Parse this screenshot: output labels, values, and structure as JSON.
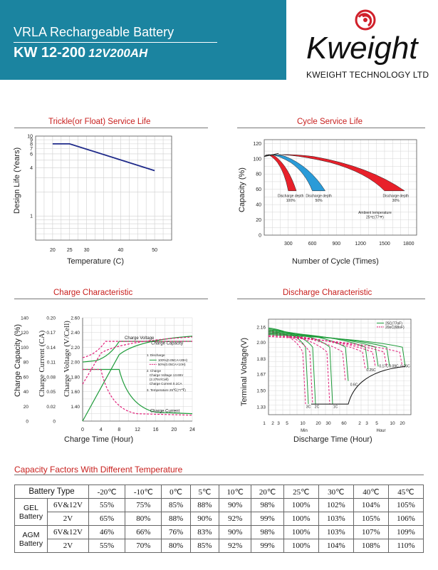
{
  "header": {
    "series": "VRLA Rechargeable Battery",
    "model": "KW 12-200",
    "spec": "12V200AH",
    "brand": "Kweight",
    "company": "KWEIGHT TECHNOLOGY LTD",
    "colors": {
      "banner": "#1b84a0",
      "accent": "#c8201e"
    }
  },
  "sections": {
    "trickle": "Trickle(or Float) Service Life",
    "cycle": "Cycle Service Life",
    "charge": "Charge Characteristic",
    "discharge": "Discharge Characteristic",
    "capacity": "Capacity Factors With Different Temperature"
  },
  "chart_data": [
    {
      "type": "line",
      "title": "Trickle(or Float) Service Life",
      "xlabel": "Temperature (C)",
      "ylabel": "Design Life (Years)",
      "x_ticks": [
        "20",
        "25",
        "30",
        "40",
        "50"
      ],
      "y_ticks": [
        "1",
        "4",
        "6",
        "7",
        "8",
        "9",
        "10"
      ],
      "series": [
        {
          "x": [
            20,
            25,
            50
          ],
          "y": [
            8,
            8,
            3.7
          ]
        }
      ],
      "ylim": [
        0.5,
        10
      ],
      "y_scale": "log",
      "grid": true
    },
    {
      "type": "area",
      "title": "Cycle Service Life",
      "xlabel": "Number of Cycle (Times)",
      "ylabel": "Capacity (%)",
      "x_ticks": [
        "300",
        "600",
        "900",
        "1200",
        "1500",
        "1800"
      ],
      "y_ticks": [
        "0",
        "20",
        "40",
        "60",
        "80",
        "100",
        "120"
      ],
      "xlim": [
        0,
        1900
      ],
      "ylim": [
        0,
        125
      ],
      "grid": true,
      "annotations": [
        "Discharge depth",
        "100%",
        "Discharge depth",
        "50%",
        "Discharge depth",
        "30%",
        "Ambient temperature",
        "25℃(77℉)"
      ],
      "series": [
        {
          "depth": "100%",
          "end_cycles": [
            300,
            400
          ],
          "color": "#e8202a"
        },
        {
          "depth": "50%",
          "end_cycles": [
            600,
            760
          ],
          "color": "#2a9bd8"
        },
        {
          "depth": "30%",
          "end_cycles": [
            1500,
            1750
          ],
          "color": "#e8202a"
        }
      ]
    },
    {
      "type": "line",
      "title": "Charge Characteristic",
      "xlabel": "Charge Time (Hour)",
      "ylabels": [
        "Charge Capacity (%)",
        "Charge Current (CA)",
        "Charge Voltage (V/Cell)"
      ],
      "x_ticks": [
        "0",
        "4",
        "8",
        "12",
        "16",
        "20",
        "24"
      ],
      "capacity_ticks": [
        "0",
        "20",
        "40",
        "60",
        "80",
        "100",
        "120",
        "140"
      ],
      "current_ticks": [
        "0",
        "0.02",
        "0.05",
        "0.08",
        "0.11",
        "0.14",
        "0.17",
        "0.20"
      ],
      "voltage_ticks": [
        "1.40",
        "1.60",
        "1.80",
        "2.00",
        "2.20",
        "2.40",
        "2.60"
      ],
      "labels": [
        "Charge Voltage",
        "Charge Capacity",
        "Charge Current"
      ],
      "legend": [
        "1. Discharge",
        "100%(0.05CA×20H)",
        "50%(0.05CA×10H)",
        "2. Charge",
        "Charge Voltage 13.65V",
        "(2.275V/Cell)",
        "Charge Current 0.1CA",
        "3. Temperature 25℃(77℉)"
      ],
      "series": [
        {
          "name": "100%(0.05CA×20H)",
          "color": "#1e9b3a",
          "style": "solid"
        },
        {
          "name": "50%(0.05CA×10H)",
          "color": "#e0207a",
          "style": "dashed"
        }
      ]
    },
    {
      "type": "line",
      "title": "Discharge Characteristic",
      "xlabel": "Discharge Time (Hour)",
      "ylabel": "Terminal Voltage(V)",
      "x_ticks": [
        "1",
        "2",
        "3",
        "5",
        "10",
        "20",
        "30",
        "60",
        "2",
        "3",
        "5",
        "10",
        "20"
      ],
      "x_group_labels": [
        "Min",
        "Hour"
      ],
      "y_ticks": [
        "1.33",
        "1.50",
        "1.67",
        "1.83",
        "2.00",
        "2.16"
      ],
      "rates": [
        "3C",
        "2C",
        "1C",
        "0.6C",
        "0.25C",
        "0.17C",
        "0.09C",
        "0.05C"
      ],
      "series": [
        {
          "name": "25C(77oF)",
          "color": "#1e9b3a",
          "style": "solid"
        },
        {
          "name": "20oC(68oF)",
          "color": "#e0207a",
          "style": "dashed"
        }
      ]
    }
  ],
  "table": {
    "head": [
      "Battery Type",
      "-20℃",
      "-10℃",
      "0℃",
      "5℃",
      "10℃",
      "20℃",
      "25℃",
      "30℃",
      "40℃",
      "45℃"
    ],
    "rows": [
      {
        "group": "GEL Battery",
        "volt": "6V&12V",
        "values": [
          "55%",
          "75%",
          "85%",
          "88%",
          "90%",
          "98%",
          "100%",
          "102%",
          "104%",
          "105%"
        ]
      },
      {
        "group": "",
        "volt": "2V",
        "values": [
          "65%",
          "80%",
          "88%",
          "90%",
          "92%",
          "99%",
          "100%",
          "103%",
          "105%",
          "106%"
        ]
      },
      {
        "group": "AGM Battery",
        "volt": "6V&12V",
        "values": [
          "46%",
          "66%",
          "76%",
          "83%",
          "90%",
          "98%",
          "100%",
          "103%",
          "107%",
          "109%"
        ]
      },
      {
        "group": "",
        "volt": "2V",
        "values": [
          "55%",
          "70%",
          "80%",
          "85%",
          "92%",
          "99%",
          "100%",
          "104%",
          "108%",
          "110%"
        ]
      }
    ]
  }
}
